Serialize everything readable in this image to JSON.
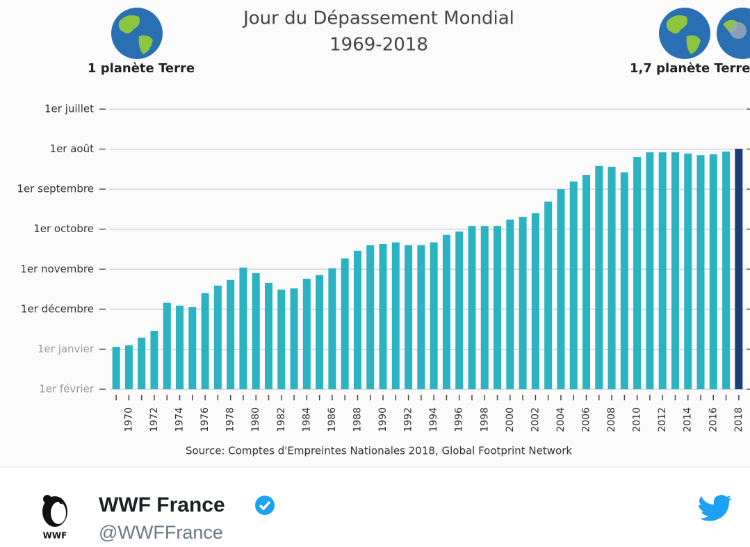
{
  "chart_data": {
    "type": "bar",
    "title": "Jour du Dépassement Mondial",
    "subtitle": "1969-2018",
    "left_label": "1 planète Terre",
    "right_label": "1,7 planète Terre",
    "source": "Source: Comptes d'Empreintes Nationales 2018, Global Footprint Network",
    "categories": [
      null,
      "1970",
      null,
      "1972",
      null,
      "1974",
      null,
      "1976",
      null,
      "1978",
      null,
      "1980",
      null,
      "1982",
      null,
      "1984",
      null,
      "1986",
      null,
      "1988",
      null,
      "1990",
      null,
      "1992",
      null,
      "1994",
      null,
      "1996",
      null,
      "1998",
      null,
      "2000",
      null,
      "2002",
      null,
      "2004",
      null,
      "2006",
      null,
      "2008",
      null,
      "2010",
      null,
      "2012",
      null,
      "2014",
      null,
      "2016",
      null,
      "2018"
    ],
    "values": [
      12.94,
      12.9,
      12.71,
      12.54,
      11.84,
      11.91,
      11.95,
      11.6,
      11.41,
      11.27,
      10.96,
      11.1,
      11.34,
      11.51,
      11.48,
      11.24,
      11.15,
      10.98,
      10.73,
      10.54,
      10.4,
      10.37,
      10.33,
      10.4,
      10.4,
      10.33,
      10.14,
      10.06,
      9.92,
      9.92,
      9.92,
      9.76,
      9.69,
      9.6,
      9.31,
      9.0,
      8.81,
      8.65,
      8.42,
      8.44,
      8.58,
      8.2,
      8.08,
      8.08,
      8.08,
      8.11,
      8.15,
      8.13,
      8.06,
      7.99
    ],
    "colors": [
      "#2bb3c1",
      "#2bb3c1",
      "#2bb3c1",
      "#2bb3c1",
      "#2bb3c1",
      "#2bb3c1",
      "#2bb3c1",
      "#2bb3c1",
      "#2bb3c1",
      "#2bb3c1",
      "#2bb3c1",
      "#2bb3c1",
      "#2bb3c1",
      "#2bb3c1",
      "#2bb3c1",
      "#2bb3c1",
      "#2bb3c1",
      "#2bb3c1",
      "#2bb3c1",
      "#2bb3c1",
      "#2bb3c1",
      "#2bb3c1",
      "#2bb3c1",
      "#2bb3c1",
      "#2bb3c1",
      "#2bb3c1",
      "#2bb3c1",
      "#2bb3c1",
      "#2bb3c1",
      "#2bb3c1",
      "#2bb3c1",
      "#2bb3c1",
      "#2bb3c1",
      "#2bb3c1",
      "#2bb3c1",
      "#2bb3c1",
      "#2bb3c1",
      "#2bb3c1",
      "#2bb3c1",
      "#2bb3c1",
      "#2bb3c1",
      "#2bb3c1",
      "#2bb3c1",
      "#2bb3c1",
      "#2bb3c1",
      "#2bb3c1",
      "#2bb3c1",
      "#2bb3c1",
      "#2bb3c1",
      "#1e3d78"
    ],
    "ylim": [
      14,
      7
    ],
    "yticks": [
      {
        "value": 7,
        "label": "1er juillet"
      },
      {
        "value": 8,
        "label": "1er août"
      },
      {
        "value": 9,
        "label": "1er septembre"
      },
      {
        "value": 10,
        "label": "1er octobre"
      },
      {
        "value": 11,
        "label": "1er novembre"
      },
      {
        "value": 12,
        "label": "1er décembre"
      },
      {
        "value": 13,
        "label": "1er janvier"
      },
      {
        "value": 14,
        "label": "1er février"
      }
    ],
    "grid": true
  },
  "tweet": {
    "name": "WWF France",
    "handle": "@WWFFrance",
    "logo_text": "WWF"
  }
}
